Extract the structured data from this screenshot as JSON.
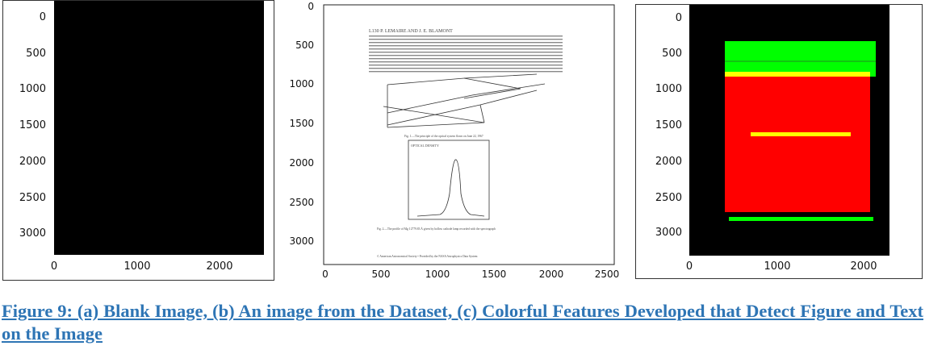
{
  "figure": {
    "caption": "Figure 9: (a) Blank Image, (b) An image from the Dataset, (c) Colorful Features Developed that Detect Figure and Text on the Image"
  },
  "colors": {
    "background_black": "#000000",
    "feature_green": "#00ff00",
    "feature_red": "#ff0000",
    "feature_yellow": "#ffff00",
    "caption_blue": "#2e75b5"
  },
  "panel_a": {
    "y_ticks": [
      "0",
      "500",
      "1000",
      "1500",
      "2000",
      "2500",
      "3000"
    ],
    "x_ticks": [
      "0",
      "1000",
      "2000"
    ]
  },
  "panel_b": {
    "y_ticks": [
      "0",
      "500",
      "1000",
      "1500",
      "2000",
      "2500",
      "3000"
    ],
    "x_ticks": [
      "0",
      "500",
      "1000",
      "1500",
      "2000",
      "2500"
    ],
    "page": {
      "header": "L130 P. LEMAIRE AND J. E. BLAMONT",
      "fig1_caption": "Fig. 1.—The principle of the optical system flown on June 22, 1967",
      "fig2_title": "OPTICAL DENSITY",
      "fig2_caption": "Fig. 2.—The profile of Mg I 2779.83 Å given by hollow cathode lamp recorded with the spectrograph",
      "footer": "© American Astronomical Society • Provided by the NASA Astrophysics Data System"
    }
  },
  "panel_c": {
    "y_ticks": [
      "0",
      "500",
      "1000",
      "1500",
      "2000",
      "2500",
      "3000"
    ],
    "x_ticks": [
      "0",
      "1000",
      "2000"
    ]
  }
}
